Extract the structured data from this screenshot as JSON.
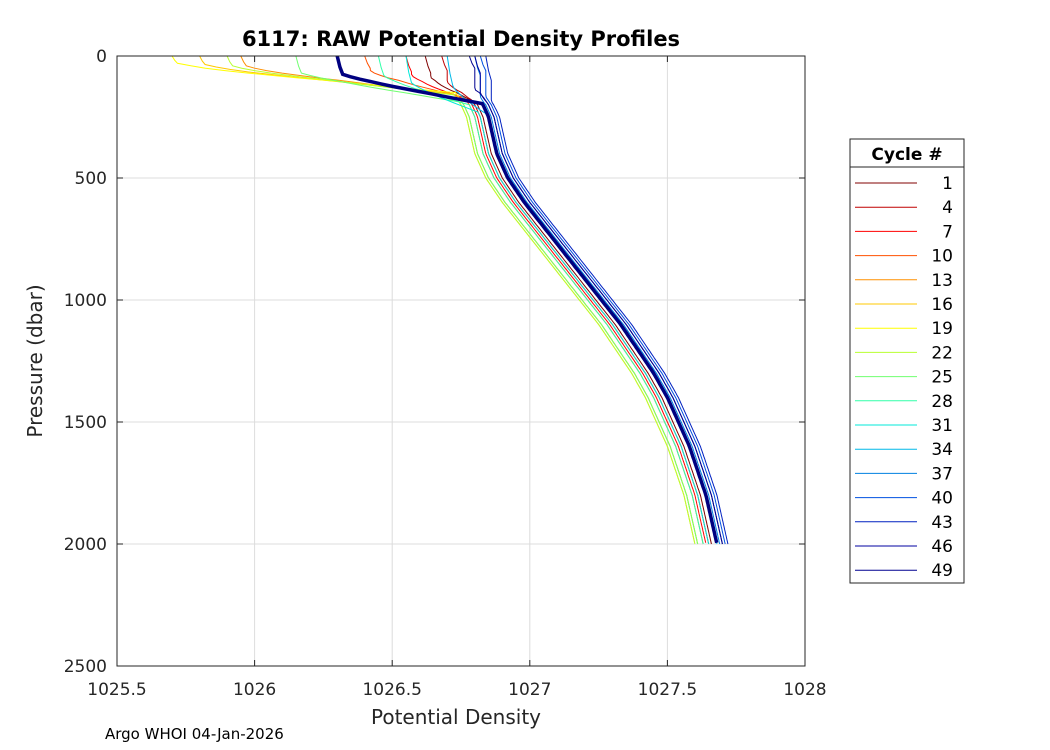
{
  "footer": "Argo WHOI 04-Jan-2026",
  "chart_data": {
    "type": "line",
    "title": "6117: RAW Potential Density Profiles",
    "xlabel": "Potential Density",
    "ylabel": "Pressure (dbar)",
    "xlim": [
      1025.5,
      1028
    ],
    "ylim": [
      0,
      2500
    ],
    "y_reversed": true,
    "grid": true,
    "xticks": [
      "1025.5",
      "1026",
      "1026.5",
      "1027",
      "1027.5",
      "1028"
    ],
    "yticks": [
      "0",
      "500",
      "1000",
      "1500",
      "2000",
      "2500"
    ],
    "legend": {
      "title": "Cycle #",
      "placement": "right-outside",
      "entries": [
        {
          "label": "1",
          "color": "#800000"
        },
        {
          "label": "4",
          "color": "#c00000"
        },
        {
          "label": "7",
          "color": "#ff0000"
        },
        {
          "label": "10",
          "color": "#ff5000"
        },
        {
          "label": "13",
          "color": "#ff9000"
        },
        {
          "label": "16",
          "color": "#ffc800"
        },
        {
          "label": "19",
          "color": "#ffff00"
        },
        {
          "label": "22",
          "color": "#b8ff30"
        },
        {
          "label": "25",
          "color": "#70ff70"
        },
        {
          "label": "28",
          "color": "#30ffa8"
        },
        {
          "label": "31",
          "color": "#00e8d8"
        },
        {
          "label": "34",
          "color": "#00b8e8"
        },
        {
          "label": "37",
          "color": "#0080e0"
        },
        {
          "label": "40",
          "color": "#0050e0"
        },
        {
          "label": "43",
          "color": "#0020c0"
        },
        {
          "label": "46",
          "color": "#0000a0"
        },
        {
          "label": "49",
          "color": "#000090"
        }
      ]
    },
    "profile_shape": {
      "pressure": [
        0,
        25,
        50,
        75,
        100,
        150,
        200,
        250,
        300,
        350,
        400,
        450,
        500,
        550,
        600,
        700,
        800,
        900,
        1000,
        1100,
        1200,
        1300,
        1400,
        1500,
        1600,
        1700,
        1800,
        1900,
        2000
      ],
      "density": [
        1026.3,
        1026.32,
        1026.4,
        1026.6,
        1026.72,
        1026.8,
        1026.83,
        1026.85,
        1026.86,
        1026.87,
        1026.88,
        1026.9,
        1026.92,
        1026.95,
        1026.98,
        1027.05,
        1027.12,
        1027.19,
        1027.26,
        1027.33,
        1027.39,
        1027.45,
        1027.5,
        1027.54,
        1027.58,
        1027.61,
        1027.64,
        1027.66,
        1027.68
      ]
    },
    "profiles": [
      {
        "cycle": 1,
        "color": "#800000",
        "surface_density": 1026.62,
        "mld": 70,
        "offset": -0.02
      },
      {
        "cycle": 4,
        "color": "#c00000",
        "surface_density": 1026.68,
        "mld": 60,
        "offset": -0.03
      },
      {
        "cycle": 7,
        "color": "#ff0000",
        "surface_density": 1026.55,
        "mld": 65,
        "offset": -0.04
      },
      {
        "cycle": 10,
        "color": "#ff5000",
        "surface_density": 1026.4,
        "mld": 50,
        "offset": -0.05
      },
      {
        "cycle": 13,
        "color": "#ff9000",
        "surface_density": 1025.95,
        "mld": 40,
        "offset": -0.07
      },
      {
        "cycle": 16,
        "color": "#ffc800",
        "surface_density": 1025.8,
        "mld": 35,
        "offset": -0.08
      },
      {
        "cycle": 19,
        "color": "#ffff00",
        "surface_density": 1025.7,
        "mld": 30,
        "offset": -0.07
      },
      {
        "cycle": 22,
        "color": "#b8ff30",
        "surface_density": 1025.9,
        "mld": 40,
        "offset": -0.08
      },
      {
        "cycle": 25,
        "color": "#70ff70",
        "surface_density": 1026.15,
        "mld": 70,
        "offset": -0.07
      },
      {
        "cycle": 28,
        "color": "#30ffa8",
        "surface_density": 1026.45,
        "mld": 80,
        "offset": -0.05
      },
      {
        "cycle": 31,
        "color": "#00e8d8",
        "surface_density": 1026.55,
        "mld": 110,
        "offset": -0.03
      },
      {
        "cycle": 34,
        "color": "#00b8e8",
        "surface_density": 1026.7,
        "mld": 120,
        "offset": 0.0
      },
      {
        "cycle": 37,
        "color": "#0080e0",
        "surface_density": 1026.8,
        "mld": 80,
        "offset": 0.01
      },
      {
        "cycle": 40,
        "color": "#0050e0",
        "surface_density": 1026.82,
        "mld": 60,
        "offset": 0.03
      },
      {
        "cycle": 43,
        "color": "#0020c0",
        "surface_density": 1026.84,
        "mld": 100,
        "offset": 0.04
      },
      {
        "cycle": 46,
        "color": "#0000a0",
        "surface_density": 1026.8,
        "mld": 70,
        "offset": 0.02
      },
      {
        "cycle": 49,
        "color": "#000090",
        "surface_density": 1026.78,
        "mld": 50,
        "offset": 0.02
      }
    ],
    "highlight_profile": {
      "color": "#000080",
      "surface_density": 1026.3,
      "mld": 75,
      "offset": 0.0
    }
  }
}
